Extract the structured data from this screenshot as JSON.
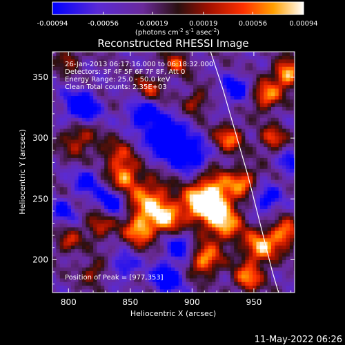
{
  "chart_data": {
    "type": "heatmap",
    "title": "Reconstructed RHESSI Image",
    "xlabel": "Heliocentric X (arcsec)",
    "ylabel": "Heliocentric Y (arcsec)",
    "xlim": [
      787,
      983
    ],
    "ylim": [
      173,
      371
    ],
    "x_ticks": [
      800,
      850,
      900,
      950
    ],
    "y_ticks": [
      200,
      250,
      300,
      350
    ],
    "colorbar": {
      "label_parts": [
        "(photons cm",
        "-2",
        " s",
        "-1",
        " asec",
        "-2",
        ")"
      ],
      "ticks": [
        "-0.00094",
        "-0.00056",
        "-0.00019",
        "0.00019",
        "0.00056",
        "0.00094"
      ],
      "range": [
        -0.00094,
        0.00094
      ]
    },
    "annotations": [
      "26-Jan-2013 06:17:16.000 to 06:18:32.000",
      "Detectors: 3F 4F 5F 6F 7F 8F, Att 0",
      "Energy Range: 25.0 - 50.0 keV",
      "Clean     Total counts: 2.35E+03"
    ],
    "peak_label": "Position of Peak = [977,353]",
    "peak": [
      977,
      353
    ],
    "limb": [
      [
        915,
        371
      ],
      [
        925,
        340
      ],
      [
        935,
        305
      ],
      [
        945,
        270
      ],
      [
        955,
        230
      ],
      [
        965,
        190
      ],
      [
        970,
        173
      ]
    ],
    "hotspots": [
      {
        "x": 808,
        "y": 300,
        "v": 0.6,
        "r": 10
      },
      {
        "x": 840,
        "y": 285,
        "v": 0.55,
        "r": 10
      },
      {
        "x": 845,
        "y": 268,
        "v": 0.75,
        "r": 8
      },
      {
        "x": 865,
        "y": 250,
        "v": 0.85,
        "r": 12
      },
      {
        "x": 858,
        "y": 225,
        "v": 0.9,
        "r": 9
      },
      {
        "x": 880,
        "y": 235,
        "v": 0.8,
        "r": 9
      },
      {
        "x": 905,
        "y": 245,
        "v": 0.85,
        "r": 10
      },
      {
        "x": 918,
        "y": 255,
        "v": 0.95,
        "r": 12
      },
      {
        "x": 925,
        "y": 230,
        "v": 0.9,
        "r": 11
      },
      {
        "x": 910,
        "y": 200,
        "v": 0.9,
        "r": 9
      },
      {
        "x": 955,
        "y": 210,
        "v": 0.9,
        "r": 10
      },
      {
        "x": 975,
        "y": 222,
        "v": 0.85,
        "r": 8
      },
      {
        "x": 942,
        "y": 265,
        "v": 0.7,
        "r": 8
      },
      {
        "x": 930,
        "y": 300,
        "v": 0.75,
        "r": 8
      },
      {
        "x": 960,
        "y": 335,
        "v": 0.85,
        "r": 8
      },
      {
        "x": 977,
        "y": 353,
        "v": 1.0,
        "r": 8
      },
      {
        "x": 965,
        "y": 300,
        "v": 0.7,
        "r": 7
      },
      {
        "x": 825,
        "y": 228,
        "v": 0.6,
        "r": 8
      },
      {
        "x": 800,
        "y": 215,
        "v": 0.55,
        "r": 7
      },
      {
        "x": 820,
        "y": 190,
        "v": 0.5,
        "r": 7
      },
      {
        "x": 865,
        "y": 340,
        "v": 0.55,
        "r": 8
      },
      {
        "x": 888,
        "y": 362,
        "v": 0.6,
        "r": 7
      },
      {
        "x": 903,
        "y": 330,
        "v": 0.55,
        "r": 7
      },
      {
        "x": 800,
        "y": 365,
        "v": 0.5,
        "r": 7
      },
      {
        "x": 945,
        "y": 185,
        "v": 0.8,
        "r": 8
      }
    ],
    "coldspots": [
      {
        "x": 810,
        "y": 325,
        "v": -0.8,
        "r": 10
      },
      {
        "x": 880,
        "y": 300,
        "v": -0.85,
        "r": 12
      },
      {
        "x": 860,
        "y": 320,
        "v": -0.7,
        "r": 9
      },
      {
        "x": 900,
        "y": 285,
        "v": -0.75,
        "r": 9
      },
      {
        "x": 835,
        "y": 248,
        "v": -0.65,
        "r": 8
      },
      {
        "x": 890,
        "y": 210,
        "v": -0.6,
        "r": 8
      },
      {
        "x": 880,
        "y": 185,
        "v": -0.7,
        "r": 9
      },
      {
        "x": 815,
        "y": 265,
        "v": -0.55,
        "r": 8
      },
      {
        "x": 935,
        "y": 340,
        "v": -0.65,
        "r": 8
      },
      {
        "x": 960,
        "y": 250,
        "v": -0.6,
        "r": 8
      },
      {
        "x": 795,
        "y": 240,
        "v": -0.5,
        "r": 7
      },
      {
        "x": 845,
        "y": 195,
        "v": -0.55,
        "r": 7
      },
      {
        "x": 980,
        "y": 280,
        "v": -0.5,
        "r": 7
      }
    ]
  },
  "footer": {
    "date": "11-May-2022 06:26"
  }
}
